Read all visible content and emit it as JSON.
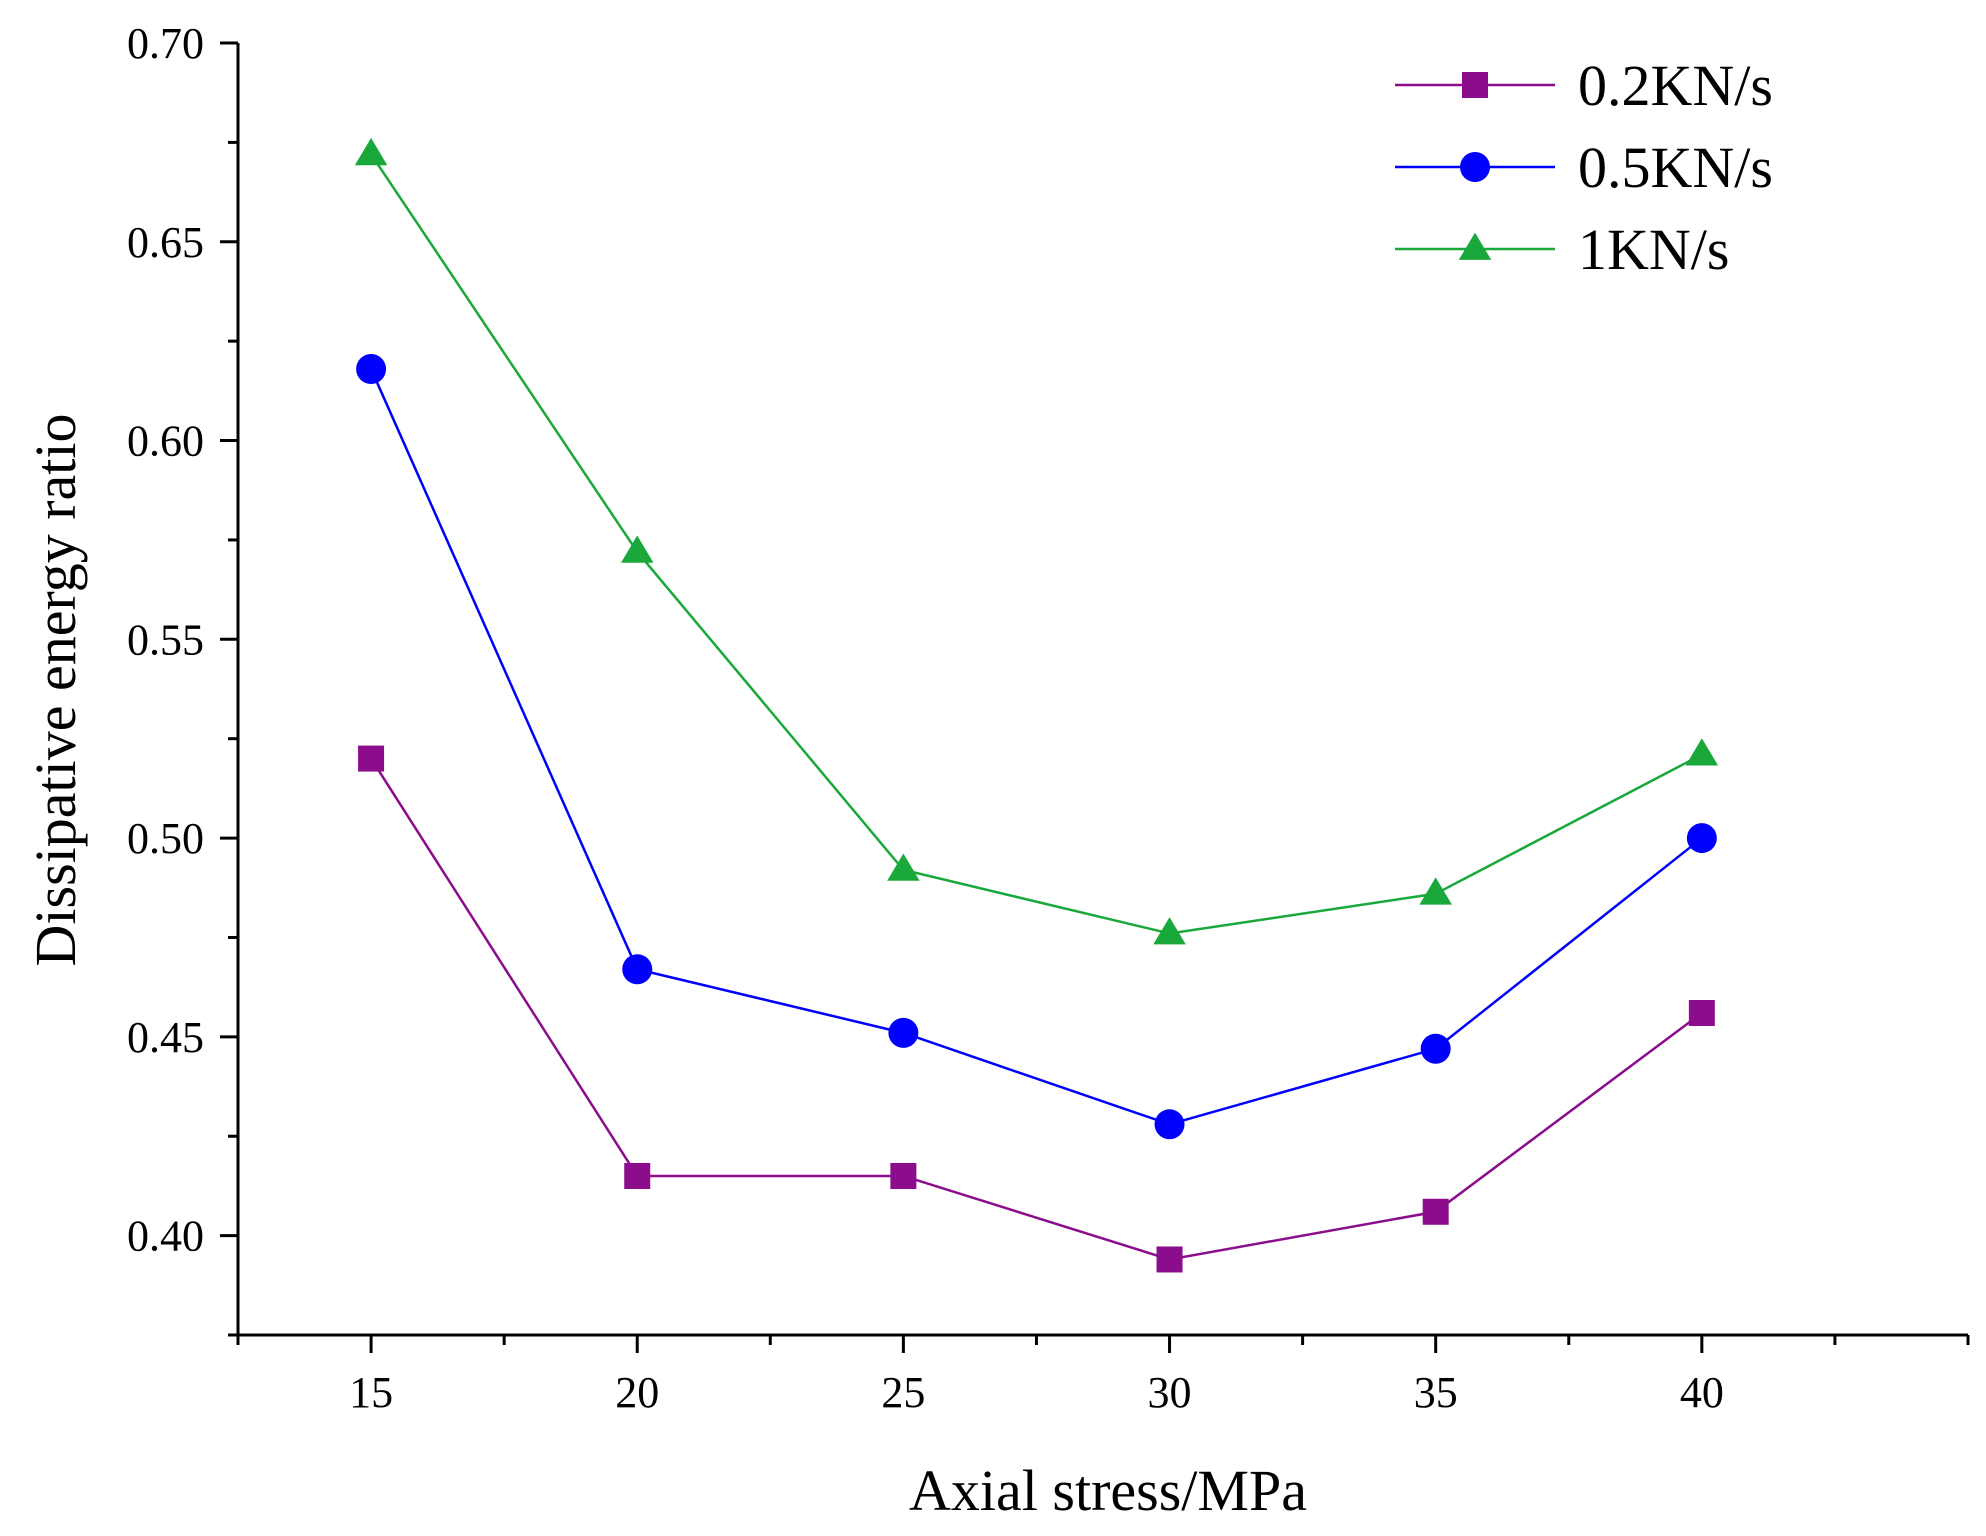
{
  "chart_data": {
    "type": "line",
    "title": "",
    "xlabel": "Axial stress/MPa",
    "ylabel": "Dissipative energy ratio",
    "x": [
      15,
      20,
      25,
      30,
      35,
      40
    ],
    "x_ticks": [
      "15",
      "20",
      "25",
      "30",
      "35",
      "40"
    ],
    "xlim": [
      12.5,
      45
    ],
    "ylim": [
      0.375,
      0.7
    ],
    "y_ticks": [
      "0.40",
      "0.45",
      "0.50",
      "0.55",
      "0.60",
      "0.65",
      "0.70"
    ],
    "legend_position": "top-right",
    "grid": false,
    "series": [
      {
        "name": "0.2KN/s",
        "color": "#8b0d8b",
        "marker": "square",
        "values": [
          0.52,
          0.415,
          0.415,
          0.394,
          0.406,
          0.456
        ]
      },
      {
        "name": "0.5KN/s",
        "color": "#0000ff",
        "marker": "circle",
        "values": [
          0.618,
          0.467,
          0.451,
          0.428,
          0.447,
          0.5
        ]
      },
      {
        "name": "1KN/s",
        "color": "#1aa83b",
        "marker": "triangle",
        "values": [
          0.672,
          0.572,
          0.492,
          0.476,
          0.486,
          0.521
        ]
      }
    ]
  }
}
